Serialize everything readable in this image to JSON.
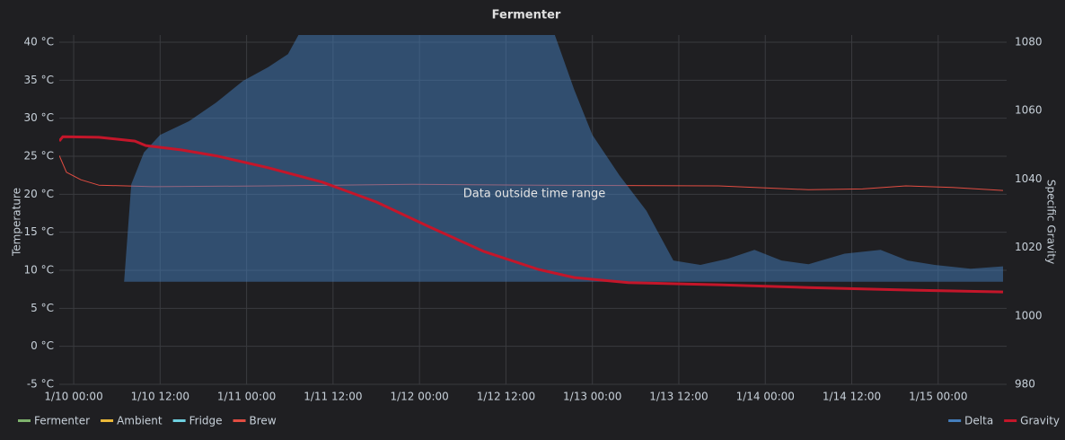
{
  "chart_data": {
    "type": "line",
    "title": "Fermenter",
    "ylabel": "Temperature",
    "y2label": "Specific Gravity",
    "annotation": "Data outside time range",
    "xlim": [
      "1/9 22:00",
      "1/15 09:30"
    ],
    "xticks": [
      "1/10 00:00",
      "1/10 12:00",
      "1/11 00:00",
      "1/11 12:00",
      "1/12 00:00",
      "1/12 12:00",
      "1/13 00:00",
      "1/13 12:00",
      "1/14 00:00",
      "1/14 12:00",
      "1/15 00:00"
    ],
    "ylim": [
      -5,
      40
    ],
    "yticks": [
      {
        "value": -5,
        "label": "-5 °C"
      },
      {
        "value": 0,
        "label": "0 °C"
      },
      {
        "value": 5,
        "label": "5 °C"
      },
      {
        "value": 10,
        "label": "10 °C"
      },
      {
        "value": 15,
        "label": "15 °C"
      },
      {
        "value": 20,
        "label": "20 °C"
      },
      {
        "value": 25,
        "label": "25 °C"
      },
      {
        "value": 30,
        "label": "30 °C"
      },
      {
        "value": 35,
        "label": "35 °C"
      },
      {
        "value": 40,
        "label": "40 °C"
      }
    ],
    "y2lim": [
      980,
      1080
    ],
    "y2ticks": [
      980,
      1000,
      1020,
      1040,
      1060,
      1080
    ],
    "grid": true,
    "legend": "bottom",
    "series": [
      {
        "name": "Fermenter",
        "color": "#7eb26d"
      },
      {
        "name": "Ambient",
        "color": "#eab839"
      },
      {
        "name": "Fridge",
        "color": "#6ed0e0"
      },
      {
        "name": "Brew",
        "color": "#e24d42",
        "x": [
          "1/9 22:00",
          "1/9 23:00",
          "1/10 01:00",
          "1/10 03:30",
          "1/10 11:00",
          "1/11 03:00",
          "1/11 23:00",
          "1/12 16:30",
          "1/13 17:30",
          "1/14 06:00",
          "1/14 13:30",
          "1/14 19:30",
          "1/15 02:00",
          "1/15 09:00"
        ],
        "values": [
          25.1,
          22.9,
          21.9,
          21.2,
          21.0,
          21.1,
          21.3,
          21.2,
          21.1,
          20.6,
          20.7,
          21.1,
          20.9,
          20.5
        ]
      },
      {
        "name": "Delta",
        "color": "#447ebc",
        "axis": "y2",
        "area": true,
        "x": [
          "1/10 07:00",
          "1/10 08:00",
          "1/10 09:45",
          "1/10 12:00",
          "1/10 16:00",
          "1/10 19:45",
          "1/10 23:30",
          "1/11 03:00",
          "1/11 05:45",
          "1/11 07:15",
          "1/12 18:45",
          "1/12 21:30",
          "1/13 00:00",
          "1/13 03:45",
          "1/13 07:30",
          "1/13 11:15",
          "1/13 15:00",
          "1/13 18:45",
          "1/13 22:30",
          "1/14 02:15",
          "1/14 06:00",
          "1/14 11:00",
          "1/14 16:00",
          "1/14 19:45",
          "1/14 23:30",
          "1/15 04:30",
          "1/15 09:00"
        ],
        "values": [
          1010.0,
          1038.5,
          1047.8,
          1052.9,
          1056.9,
          1062.3,
          1068.7,
          1072.7,
          1076.5,
          1082.3,
          1082.3,
          1066.0,
          1052.9,
          1041.1,
          1030.7,
          1016.2,
          1014.9,
          1016.7,
          1019.3,
          1016.2,
          1015.1,
          1018.2,
          1019.3,
          1016.2,
          1014.9,
          1013.8,
          1014.5
        ]
      },
      {
        "name": "Gravity",
        "color": "#c4162a",
        "axis": "y2",
        "width": 3,
        "x": [
          "1/9 22:00",
          "1/9 22:30",
          "1/10 03:30",
          "1/10 08:30",
          "1/10 10:00",
          "1/10 15:00",
          "1/10 20:00",
          "1/11 03:00",
          "1/11 10:30",
          "1/11 18:00",
          "1/12 01:30",
          "1/12 09:00",
          "1/12 16:30",
          "1/12 21:30",
          "1/13 05:00",
          "1/13 17:30",
          "1/14 06:00",
          "1/14 18:30",
          "1/15 09:00"
        ],
        "values": [
          1051.1,
          1052.4,
          1052.2,
          1051.1,
          1049.8,
          1048.5,
          1046.7,
          1043.3,
          1039.1,
          1033.3,
          1025.9,
          1018.8,
          1013.6,
          1011.2,
          1009.7,
          1009.1,
          1008.3,
          1007.6,
          1007.0
        ]
      }
    ]
  }
}
